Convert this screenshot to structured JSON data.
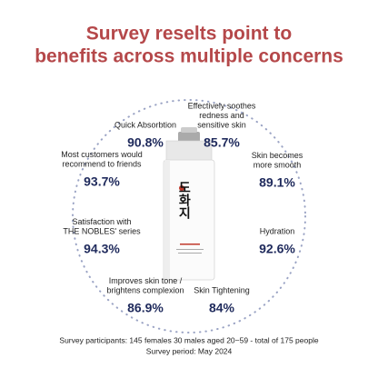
{
  "header": {
    "title": [
      "Survey reselts point to",
      "benefits across multiple concerns"
    ]
  },
  "product": {
    "label": "도화지"
  },
  "items": [
    {
      "label": [
        "Quick Absorbtion"
      ],
      "value": "90.8%"
    },
    {
      "label": [
        "Effectively soothes",
        "redness and",
        "sensitive skin"
      ],
      "value": "85.7%"
    },
    {
      "label": [
        "Most customers would",
        "recommend to friends"
      ],
      "value": "93.7%"
    },
    {
      "label": [
        "Skin becomes",
        "more smooth"
      ],
      "value": "89.1%"
    },
    {
      "label": [
        "Satisfaction with",
        "THE NOBLES' series"
      ],
      "value": "94.3%"
    },
    {
      "label": [
        "Hydration"
      ],
      "value": "92.6%"
    },
    {
      "label": [
        "Improves skin tone /",
        "brightens complexion"
      ],
      "value": "86.9%"
    },
    {
      "label": [
        "Skin Tightening"
      ],
      "value": "84%"
    }
  ],
  "footer": [
    "Survey participants: 145 females 30 males aged 20~59 - total of 175 people",
    "Survey period: May 2024"
  ]
}
